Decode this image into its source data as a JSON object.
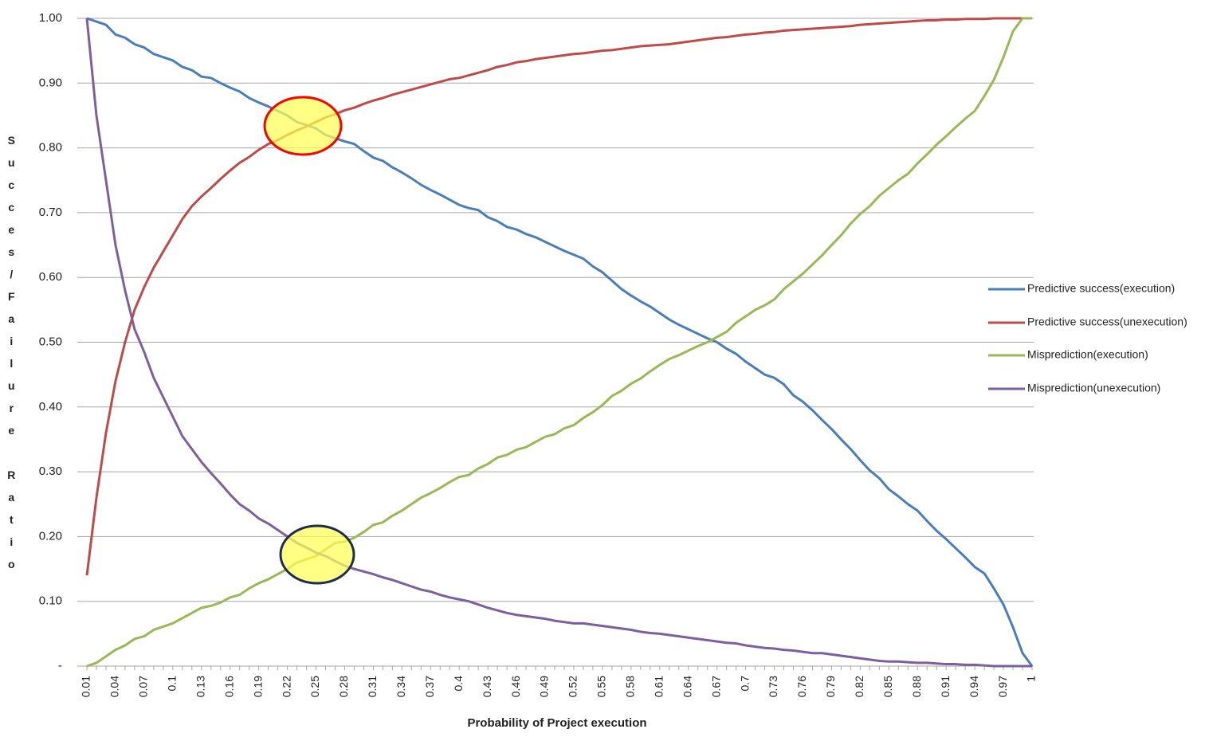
{
  "chart_data": {
    "type": "line",
    "x_label": "Probability of Project execution",
    "y_label": "Succes/Failure Ratio",
    "categories": [
      "0.01",
      null,
      null,
      "0.04",
      null,
      null,
      "0.07",
      null,
      null,
      "0.1",
      null,
      null,
      "0.13",
      null,
      null,
      "0.16",
      null,
      null,
      "0.19",
      null,
      null,
      "0.22",
      null,
      null,
      "0.25",
      null,
      null,
      "0.28",
      null,
      null,
      "0.31",
      null,
      null,
      "0.34",
      null,
      null,
      "0.37",
      null,
      null,
      "0.4",
      null,
      null,
      "0.43",
      null,
      null,
      "0.46",
      null,
      null,
      "0.49",
      null,
      null,
      "0.52",
      null,
      null,
      "0.55",
      null,
      null,
      "0.58",
      null,
      null,
      "0.61",
      null,
      null,
      "0.64",
      null,
      null,
      "0.67",
      null,
      null,
      "0.7",
      null,
      null,
      "0.73",
      null,
      null,
      "0.76",
      null,
      null,
      "0.79",
      null,
      null,
      "0.82",
      null,
      null,
      "0.85",
      null,
      null,
      "0.88",
      null,
      null,
      "0.91",
      null,
      null,
      "0.94",
      null,
      null,
      "0.97",
      null,
      null,
      "1"
    ],
    "ylim": [
      0,
      1
    ],
    "yticks": [
      {
        "value": 0,
        "label": "-"
      },
      {
        "value": 0.1,
        "label": "0.10"
      },
      {
        "value": 0.2,
        "label": "0.20"
      },
      {
        "value": 0.3,
        "label": "0.30"
      },
      {
        "value": 0.4,
        "label": "0.40"
      },
      {
        "value": 0.5,
        "label": "0.50"
      },
      {
        "value": 0.6,
        "label": "0.60"
      },
      {
        "value": 0.7,
        "label": "0.70"
      },
      {
        "value": 0.8,
        "label": "0.80"
      },
      {
        "value": 0.9,
        "label": "0.90"
      },
      {
        "value": 1,
        "label": "1.00"
      }
    ],
    "grid": true,
    "legend": "right",
    "series": [
      {
        "name": "Predictive success(execution)",
        "color": "#4a7ebb",
        "values": [
          1.0,
          0.995,
          0.99,
          0.975,
          0.97,
          0.96,
          0.955,
          0.945,
          0.94,
          0.935,
          0.925,
          0.92,
          0.91,
          0.908,
          0.9,
          0.893,
          0.887,
          0.877,
          0.87,
          0.864,
          0.857,
          0.85,
          0.84,
          0.835,
          0.83,
          0.82,
          0.815,
          0.81,
          0.806,
          0.795,
          0.785,
          0.78,
          0.77,
          0.762,
          0.753,
          0.743,
          0.735,
          0.728,
          0.72,
          0.712,
          0.707,
          0.704,
          0.693,
          0.687,
          0.678,
          0.674,
          0.667,
          0.662,
          0.655,
          0.648,
          0.641,
          0.635,
          0.629,
          0.617,
          0.608,
          0.595,
          0.582,
          0.572,
          0.563,
          0.555,
          0.545,
          0.535,
          0.527,
          0.52,
          0.513,
          0.506,
          0.5,
          0.49,
          0.482,
          0.47,
          0.46,
          0.45,
          0.445,
          0.435,
          0.418,
          0.408,
          0.395,
          0.38,
          0.366,
          0.35,
          0.335,
          0.318,
          0.302,
          0.29,
          0.273,
          0.262,
          0.25,
          0.24,
          0.224,
          0.209,
          0.196,
          0.182,
          0.168,
          0.153,
          0.143,
          0.12,
          0.095,
          0.06,
          0.02,
          0
        ]
      },
      {
        "name": "Predictive success(unexecution)",
        "color": "#be4b48",
        "values": [
          0.14,
          0.26,
          0.36,
          0.44,
          0.5,
          0.55,
          0.585,
          0.615,
          0.64,
          0.665,
          0.69,
          0.71,
          0.725,
          0.738,
          0.752,
          0.765,
          0.777,
          0.786,
          0.797,
          0.806,
          0.812,
          0.82,
          0.827,
          0.833,
          0.84,
          0.847,
          0.852,
          0.858,
          0.862,
          0.868,
          0.873,
          0.877,
          0.882,
          0.886,
          0.89,
          0.894,
          0.898,
          0.902,
          0.906,
          0.908,
          0.912,
          0.916,
          0.92,
          0.925,
          0.928,
          0.932,
          0.934,
          0.937,
          0.939,
          0.941,
          0.943,
          0.945,
          0.946,
          0.948,
          0.95,
          0.951,
          0.953,
          0.955,
          0.957,
          0.958,
          0.959,
          0.96,
          0.962,
          0.964,
          0.966,
          0.968,
          0.97,
          0.971,
          0.973,
          0.975,
          0.976,
          0.978,
          0.979,
          0.981,
          0.982,
          0.983,
          0.984,
          0.985,
          0.986,
          0.987,
          0.988,
          0.99,
          0.991,
          0.992,
          0.993,
          0.994,
          0.995,
          0.996,
          0.997,
          0.997,
          0.998,
          0.998,
          0.999,
          0.999,
          0.999,
          1,
          1,
          1,
          1,
          1
        ]
      },
      {
        "name": "Misprediction(execution)",
        "color": "#98b954",
        "values": [
          0,
          0.005,
          0.015,
          0.025,
          0.032,
          0.042,
          0.046,
          0.056,
          0.061,
          0.066,
          0.074,
          0.082,
          0.09,
          0.093,
          0.098,
          0.106,
          0.11,
          0.12,
          0.128,
          0.134,
          0.142,
          0.15,
          0.16,
          0.165,
          0.17,
          0.18,
          0.19,
          0.192,
          0.198,
          0.207,
          0.218,
          0.222,
          0.232,
          0.24,
          0.25,
          0.26,
          0.267,
          0.275,
          0.284,
          0.292,
          0.295,
          0.305,
          0.312,
          0.322,
          0.326,
          0.334,
          0.338,
          0.346,
          0.354,
          0.358,
          0.367,
          0.372,
          0.383,
          0.392,
          0.403,
          0.417,
          0.425,
          0.436,
          0.444,
          0.455,
          0.465,
          0.474,
          0.48,
          0.487,
          0.494,
          0.5,
          0.508,
          0.516,
          0.53,
          0.54,
          0.55,
          0.557,
          0.566,
          0.582,
          0.594,
          0.606,
          0.62,
          0.634,
          0.65,
          0.665,
          0.683,
          0.698,
          0.71,
          0.726,
          0.738,
          0.75,
          0.76,
          0.776,
          0.79,
          0.805,
          0.818,
          0.832,
          0.845,
          0.857,
          0.88,
          0.905,
          0.94,
          0.98,
          1,
          1
        ]
      },
      {
        "name": "Misprediction(unexecution)",
        "color": "#7d5fa0",
        "values": [
          1,
          0.85,
          0.75,
          0.65,
          0.58,
          0.52,
          0.485,
          0.445,
          0.415,
          0.385,
          0.355,
          0.335,
          0.315,
          0.298,
          0.282,
          0.265,
          0.25,
          0.24,
          0.228,
          0.22,
          0.21,
          0.2,
          0.19,
          0.183,
          0.175,
          0.17,
          0.162,
          0.155,
          0.15,
          0.146,
          0.142,
          0.137,
          0.133,
          0.128,
          0.123,
          0.118,
          0.115,
          0.11,
          0.106,
          0.103,
          0.1,
          0.095,
          0.09,
          0.086,
          0.082,
          0.079,
          0.077,
          0.075,
          0.073,
          0.07,
          0.068,
          0.066,
          0.066,
          0.064,
          0.062,
          0.06,
          0.058,
          0.056,
          0.053,
          0.051,
          0.05,
          0.048,
          0.046,
          0.044,
          0.042,
          0.04,
          0.038,
          0.036,
          0.035,
          0.032,
          0.03,
          0.028,
          0.027,
          0.025,
          0.024,
          0.022,
          0.02,
          0.02,
          0.018,
          0.016,
          0.014,
          0.012,
          0.01,
          0.008,
          0.007,
          0.007,
          0.006,
          0.005,
          0.005,
          0.004,
          0.003,
          0.003,
          0.002,
          0.002,
          0.001,
          0,
          0,
          0,
          0,
          0
        ]
      }
    ]
  }
}
